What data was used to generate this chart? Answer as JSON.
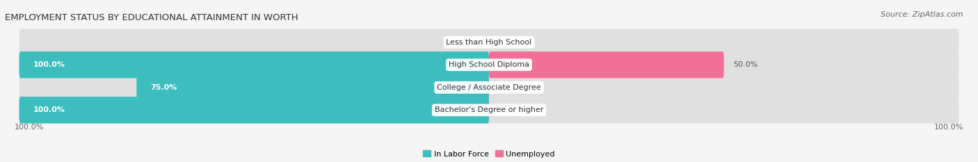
{
  "title": "EMPLOYMENT STATUS BY EDUCATIONAL ATTAINMENT IN WORTH",
  "source": "Source: ZipAtlas.com",
  "categories": [
    "Less than High School",
    "High School Diploma",
    "College / Associate Degree",
    "Bachelor's Degree or higher"
  ],
  "labor_force": [
    0.0,
    100.0,
    75.0,
    100.0
  ],
  "unemployed": [
    0.0,
    50.0,
    0.0,
    0.0
  ],
  "labor_force_color": "#3dbdbd",
  "unemployed_color": "#f07098",
  "bar_bg_color": "#e0e0e0",
  "bar_height": 0.62,
  "xlim_left": -100,
  "xlim_right": 100,
  "legend_labor_force": "In Labor Force",
  "legend_unemployed": "Unemployed",
  "title_fontsize": 9.5,
  "source_fontsize": 8,
  "label_fontsize": 8,
  "tick_fontsize": 8,
  "label_color_dark": "#555555",
  "label_color_white": "#ffffff",
  "bg_color": "#f5f5f5",
  "axis_label_bottom_left": "100.0%",
  "axis_label_bottom_right": "100.0%"
}
